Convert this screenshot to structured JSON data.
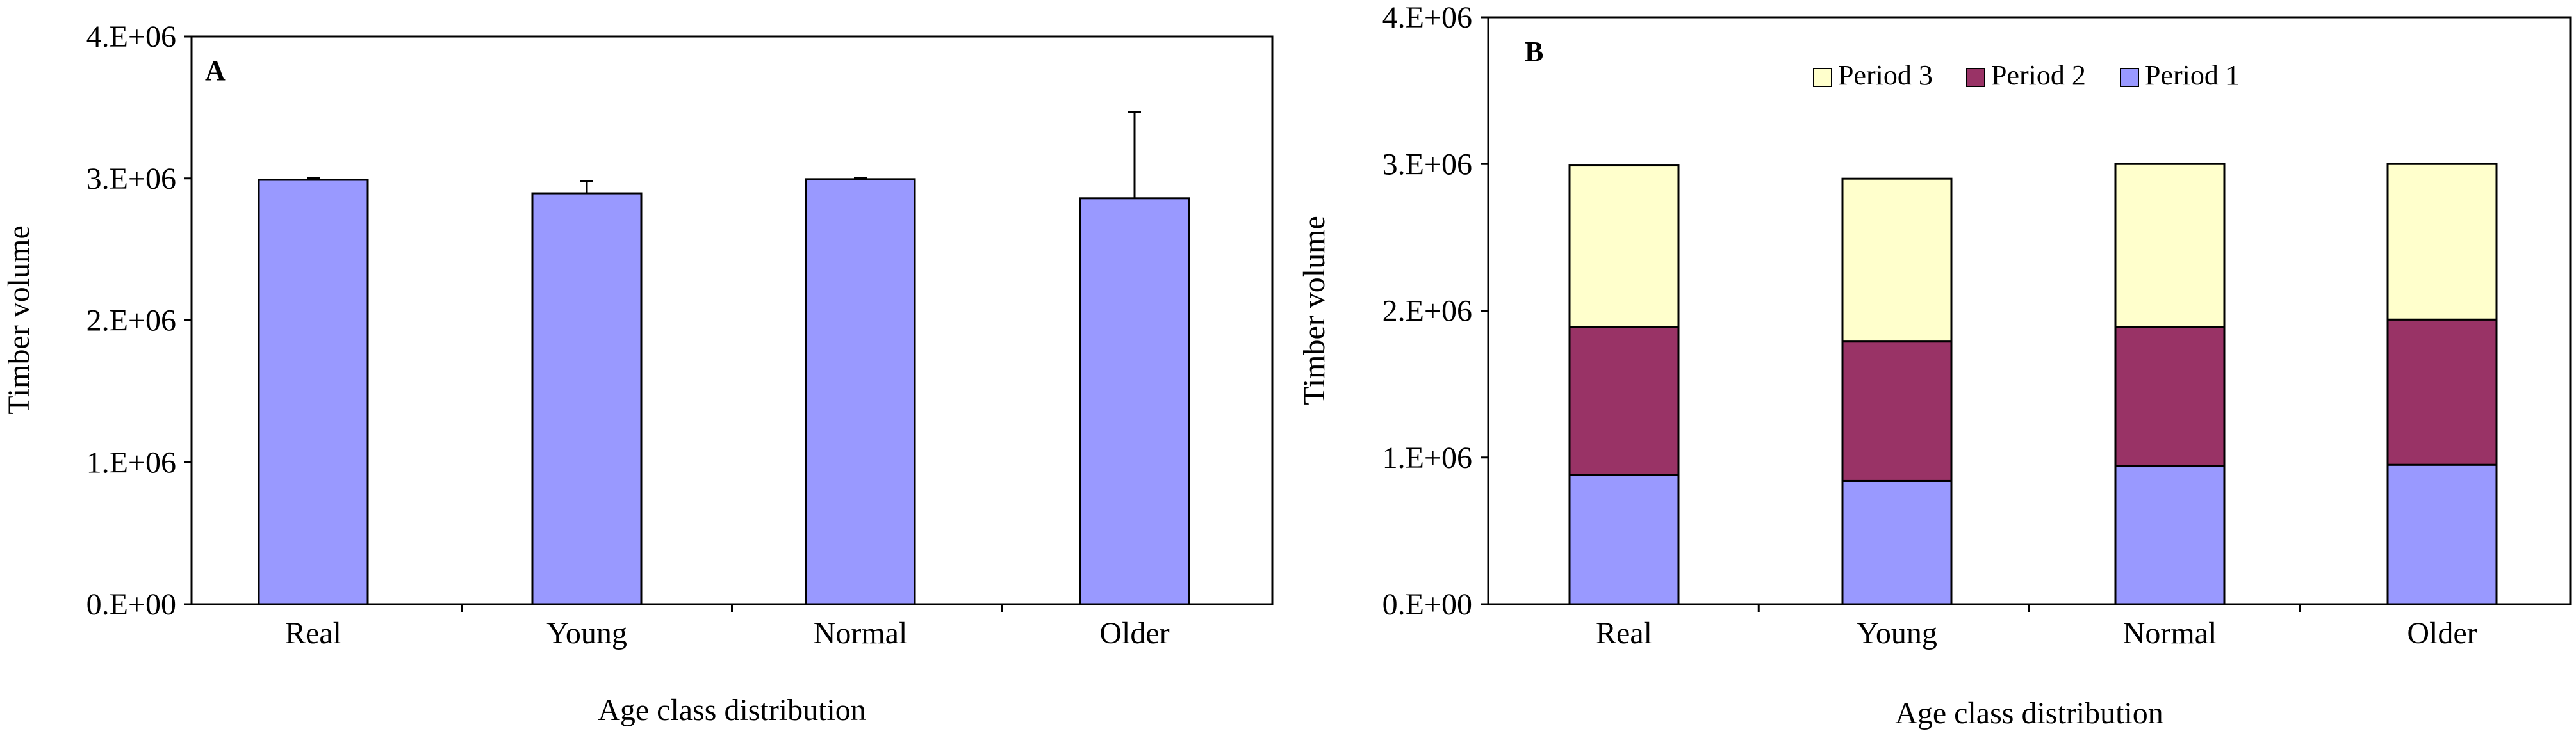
{
  "chart_data": [
    {
      "panel": "A",
      "type": "bar",
      "categories": [
        "Real",
        "Young",
        "Normal",
        "Older"
      ],
      "values": [
        2990000,
        2895000,
        2995000,
        2860000
      ],
      "error_plus": [
        15000,
        85000,
        8000,
        610000
      ],
      "ylim": [
        0,
        4000000
      ],
      "yticks": [
        0,
        1000000,
        2000000,
        3000000,
        4000000
      ],
      "ytick_labels": [
        "0.E+00",
        "1.E+06",
        "2.E+06",
        "3.E+06",
        "4.E+06"
      ],
      "xlabel": "Age class distribution",
      "ylabel": "Timber volume",
      "colors": {
        "bar": "#9999ff"
      }
    },
    {
      "panel": "B",
      "type": "bar",
      "stacked": true,
      "categories": [
        "Real",
        "Young",
        "Normal",
        "Older"
      ],
      "series": [
        {
          "name": "Period 1",
          "values": [
            880000,
            840000,
            940000,
            950000
          ],
          "color": "#9999ff"
        },
        {
          "name": "Period 2",
          "values": [
            1010000,
            950000,
            950000,
            990000
          ],
          "color": "#993366"
        },
        {
          "name": "Period 3",
          "values": [
            1100000,
            1110000,
            1110000,
            1060000
          ],
          "color": "#ffffcc"
        }
      ],
      "legend_order": [
        "Period 3",
        "Period 2",
        "Period 1"
      ],
      "ylim": [
        0,
        4000000
      ],
      "yticks": [
        0,
        1000000,
        2000000,
        3000000,
        4000000
      ],
      "ytick_labels": [
        "0.E+00",
        "1.E+06",
        "2.E+06",
        "3.E+06",
        "4.E+06"
      ],
      "xlabel": "Age class distribution",
      "ylabel": "Timber volume"
    }
  ]
}
